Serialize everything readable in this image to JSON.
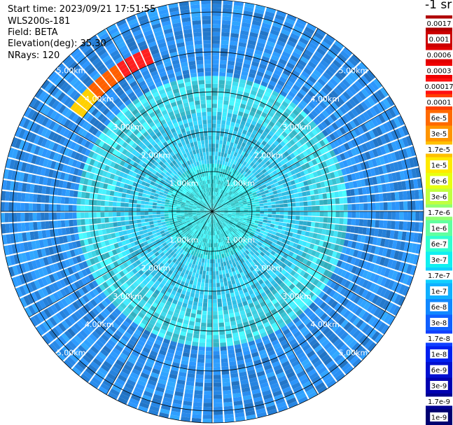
{
  "info": {
    "start_time": "Start time: 2023/09/21 17:51:55",
    "instrument": "WLS200s-181",
    "field": "Field: BETA",
    "elevation": "Elevation(deg): 35.30",
    "nrays": "NRays: 120"
  },
  "colorbar": {
    "title": "-1 sr",
    "labels": [
      "0.0017",
      "0.001",
      "0.0006",
      "0.0003",
      "0.00017",
      "0.0001",
      "6e-5",
      "3e-5",
      "1.7e-5",
      "1e-5",
      "6e-6",
      "3e-6",
      "1.7e-6",
      "1e-6",
      "6e-7",
      "3e-7",
      "1.7e-7",
      "1e-7",
      "6e-8",
      "3e-8",
      "1.7e-8",
      "1e-8",
      "6e-9",
      "3e-9",
      "1.7e-9",
      "1e-9"
    ],
    "colors": [
      "#b00000",
      "#cc0000",
      "#e00000",
      "#f00000",
      "#ff1010",
      "#ff4000",
      "#ff6a00",
      "#ff9500",
      "#ffc000",
      "#ffea00",
      "#e8ff10",
      "#c0ff40",
      "#90ff70",
      "#60ffa0",
      "#30ffd0",
      "#10f0f0",
      "#10d0ff",
      "#10b0ff",
      "#1088ff",
      "#1060ff",
      "#1040ff",
      "#0020f0",
      "#0010d0",
      "#0000b0",
      "#000090",
      "#000070"
    ]
  },
  "chart_data": {
    "type": "heatmap",
    "projection": "polar-ppi",
    "n_rays": 120,
    "r_max_km": 5.3,
    "rings_km": [
      1,
      2,
      3,
      4,
      5
    ],
    "ring_labels": [
      "1.00km",
      "2.00km",
      "3.00km",
      "4.00km",
      "5.00km"
    ],
    "spokes_deg": [
      0,
      30,
      60,
      90,
      120,
      150
    ],
    "field": "BETA",
    "value_regions": [
      {
        "r_km": [
          0,
          1.2
        ],
        "color": "#29d8dc"
      },
      {
        "r_km": [
          1.2,
          2.5
        ],
        "color": "#33c8f0"
      },
      {
        "r_km": [
          2.5,
          3.4
        ],
        "color": "#3fd6e8"
      },
      {
        "r_km": [
          3.4,
          5.3
        ],
        "color": "#2a8ef0"
      }
    ],
    "feature": {
      "description": "",
      "r_km": [
        4.0,
        4.4
      ],
      "az_deg": [
        305,
        338
      ],
      "colors": [
        "#ffd000",
        "#ff6000",
        "#ff2020"
      ]
    }
  }
}
